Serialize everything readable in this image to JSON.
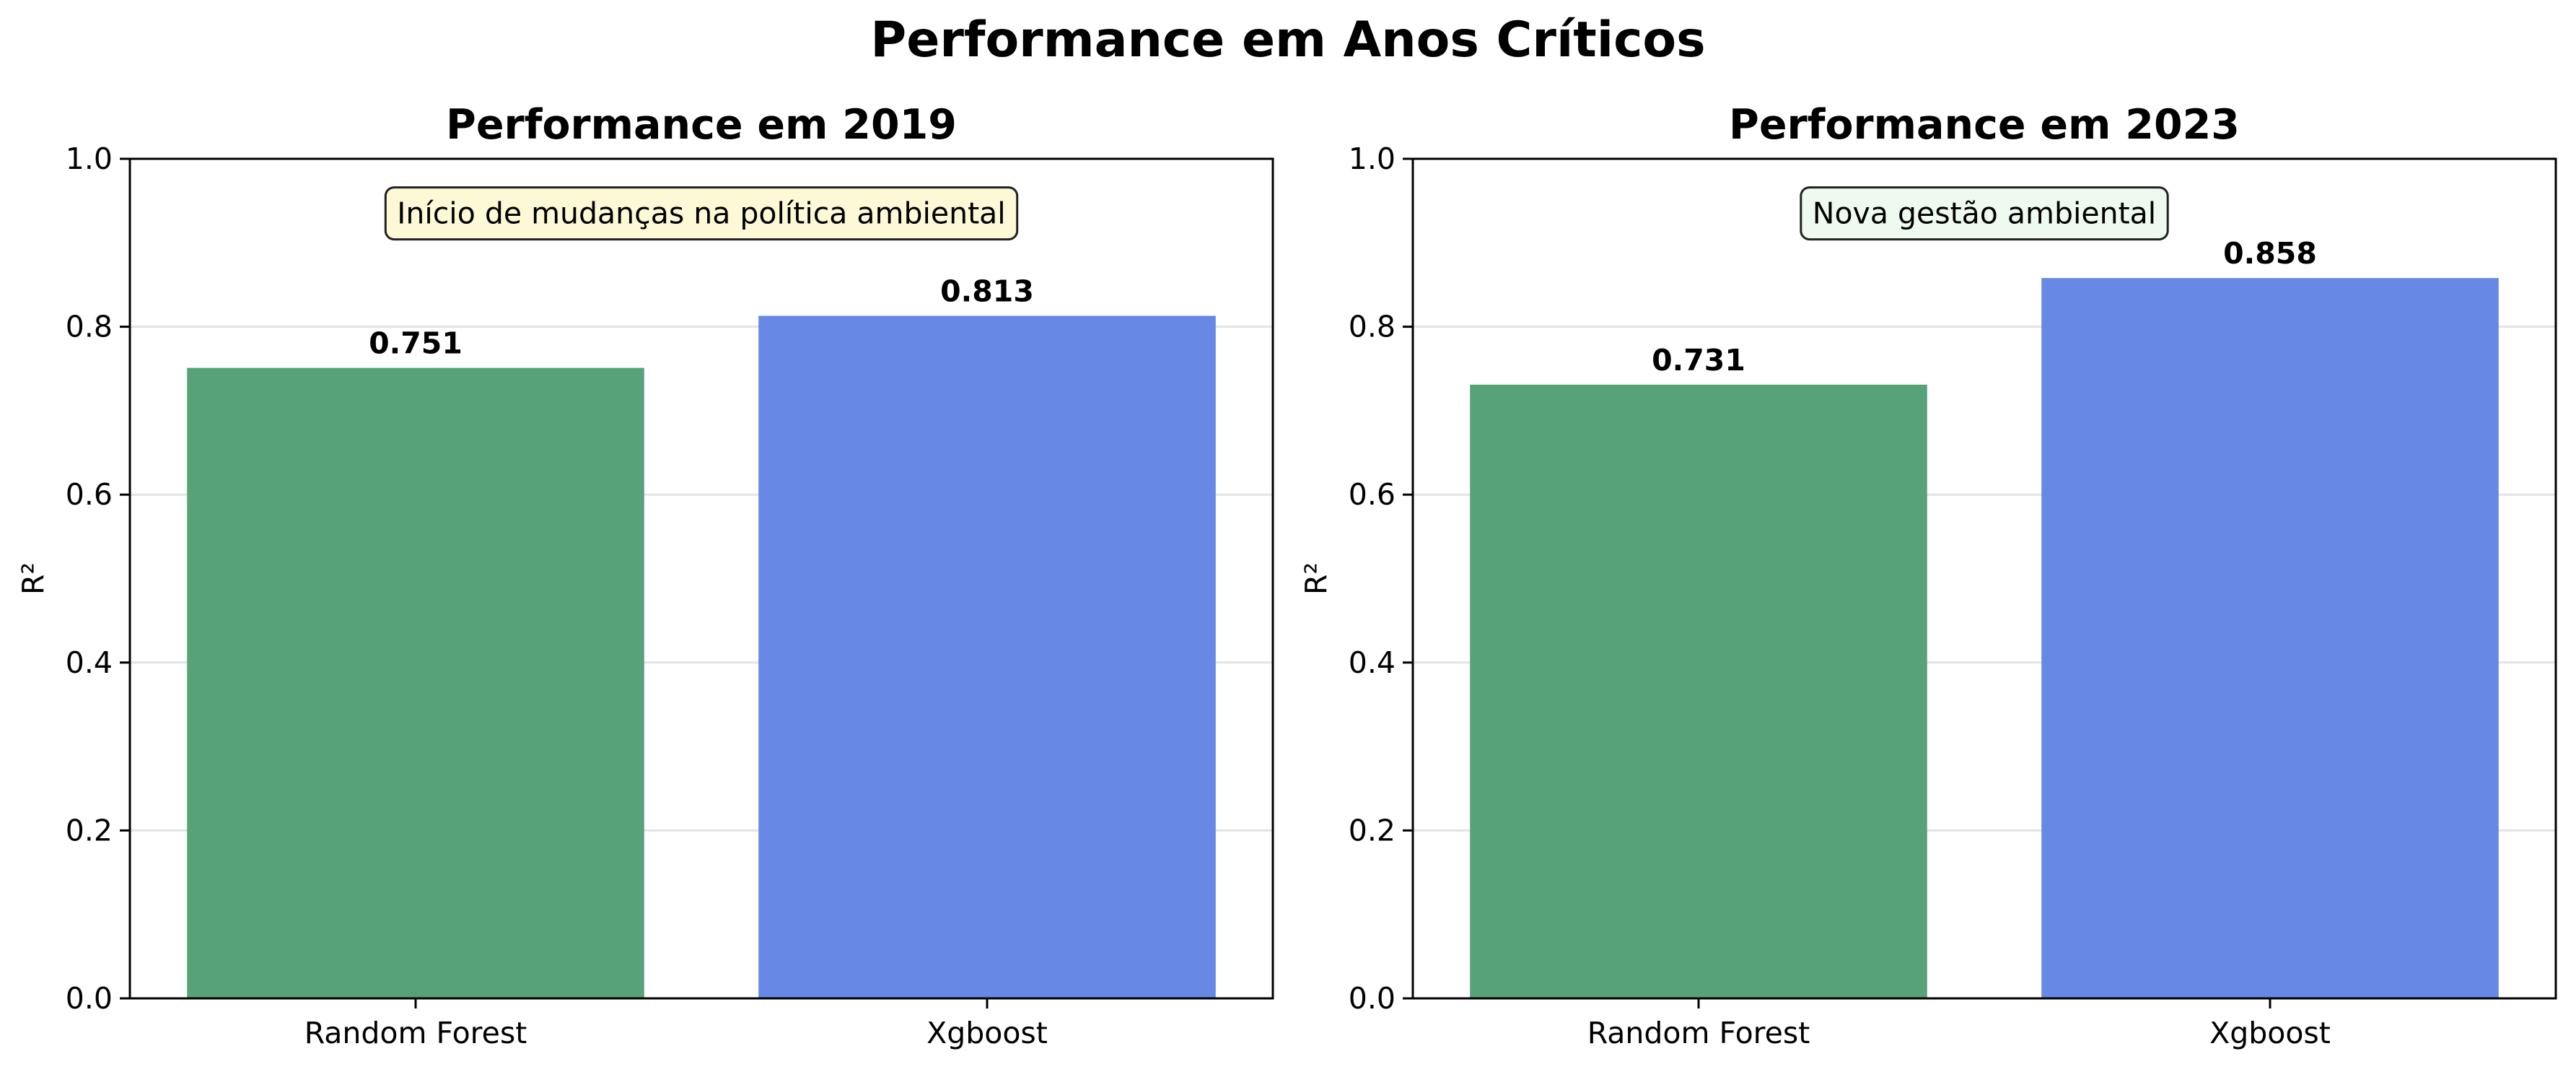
{
  "figure": {
    "title": "Performance em Anos Críticos"
  },
  "chart_data": [
    {
      "type": "bar",
      "title": "Performance em 2019",
      "xlabel": "",
      "ylabel": "R²",
      "ylim": [
        0,
        1.0
      ],
      "yticks": [
        "0.0",
        "0.2",
        "0.4",
        "0.6",
        "0.8",
        "1.0"
      ],
      "categories": [
        "Random Forest",
        "Xgboost"
      ],
      "values": [
        0.751,
        0.813
      ],
      "value_labels": [
        "0.751",
        "0.813"
      ],
      "bar_colors": [
        "#57a278",
        "#6788e5"
      ],
      "grid": "y",
      "annotation": {
        "text": "Início de mudanças na política ambiental",
        "y": 0.935,
        "bg": "#fdf8d6"
      }
    },
    {
      "type": "bar",
      "title": "Performance em 2023",
      "xlabel": "",
      "ylabel": "R²",
      "ylim": [
        0,
        1.0
      ],
      "yticks": [
        "0.0",
        "0.2",
        "0.4",
        "0.6",
        "0.8",
        "1.0"
      ],
      "categories": [
        "Random Forest",
        "Xgboost"
      ],
      "values": [
        0.731,
        0.858
      ],
      "value_labels": [
        "0.731",
        "0.858"
      ],
      "bar_colors": [
        "#57a278",
        "#6788e5"
      ],
      "grid": "y",
      "annotation": {
        "text": "Nova gestão ambiental",
        "y": 0.935,
        "bg": "#eefaf0"
      }
    }
  ]
}
